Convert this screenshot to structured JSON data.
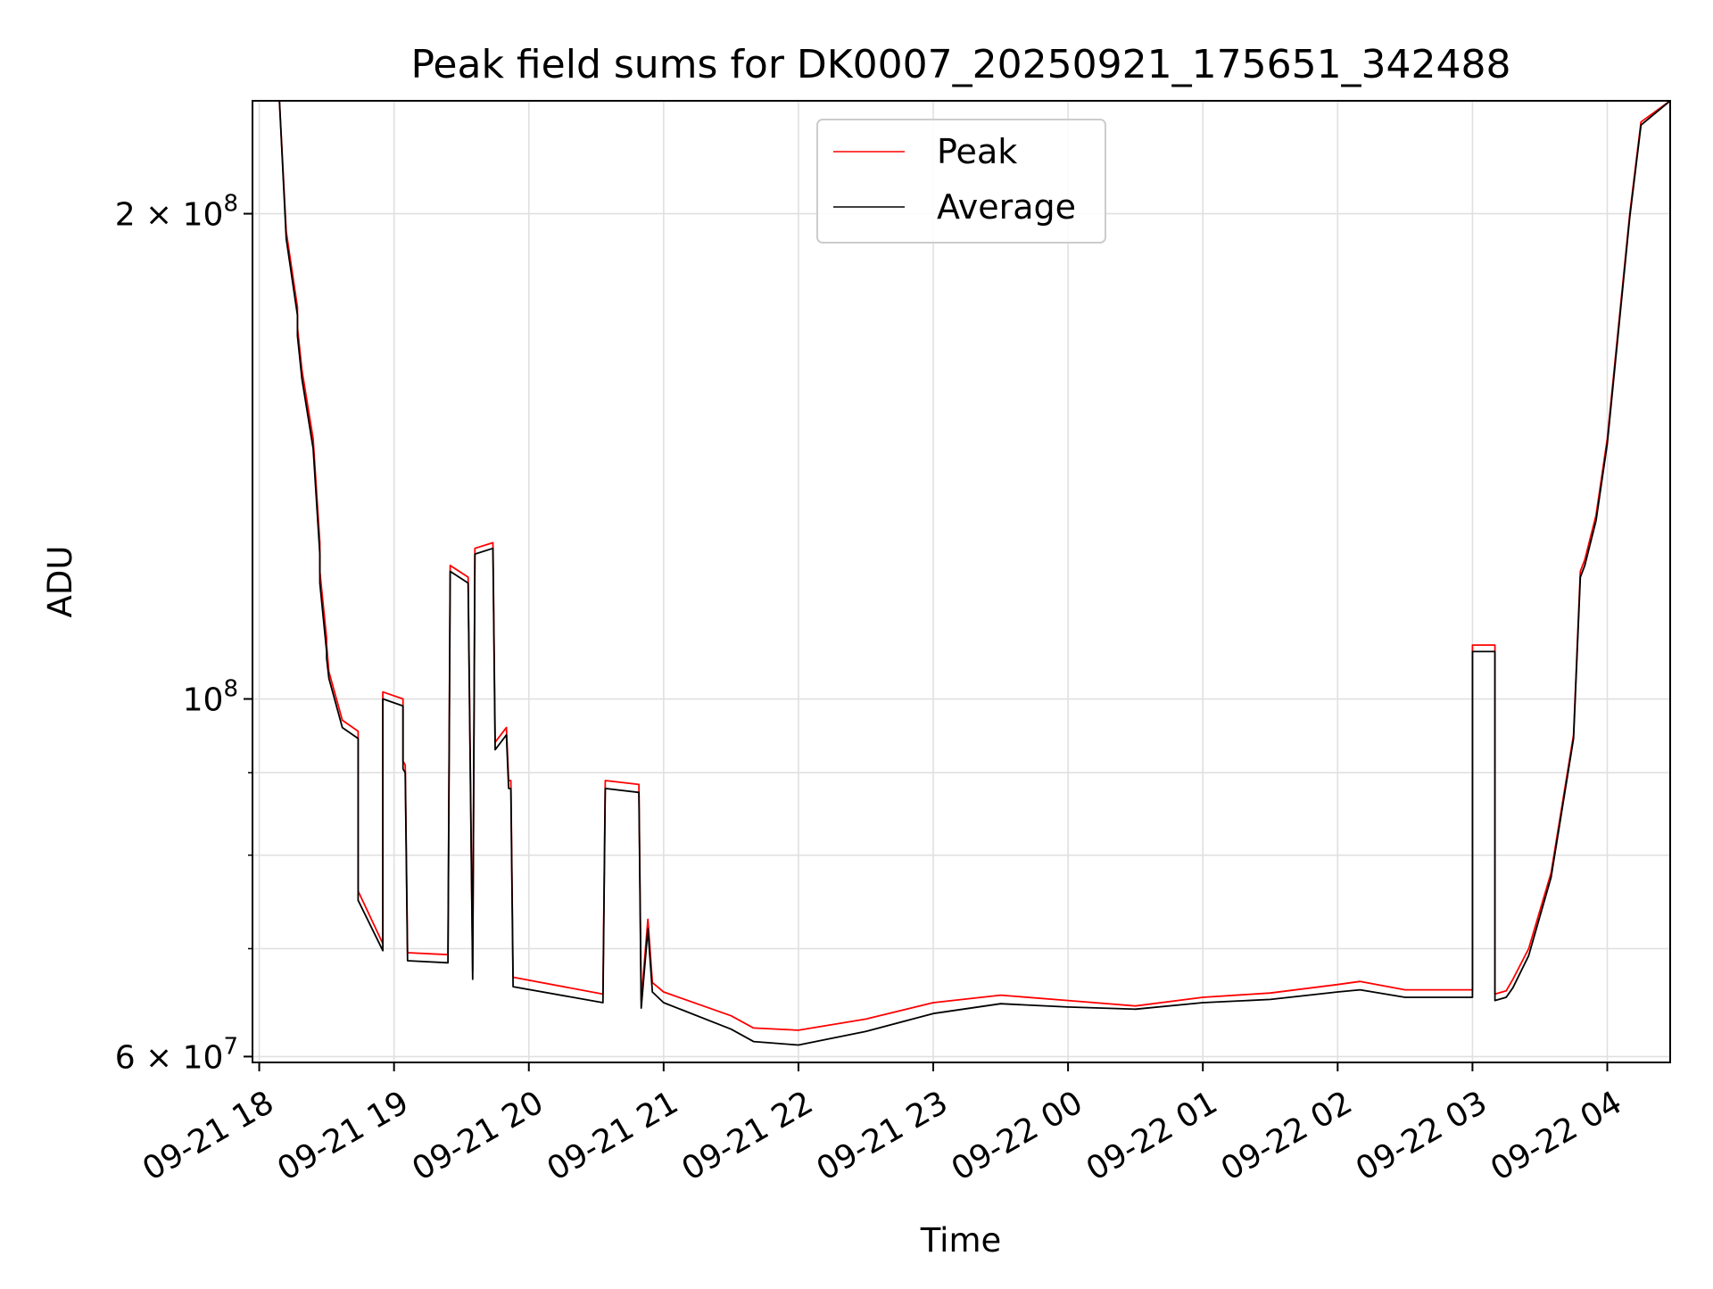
{
  "chart_data": {
    "type": "line",
    "title": "Peak field sums for DK0007_20250921_175651_342488",
    "xlabel": "Time",
    "ylabel": "ADU",
    "yscale": "log",
    "ylim": [
      59500000,
      235000000
    ],
    "xlim": [
      "2025-09-21 17:57",
      "2025-09-22 04:28"
    ],
    "grid": true,
    "legend_position": "top-center",
    "colors": {
      "Peak": "#ff0000",
      "Average": "#000000"
    },
    "x_ticks": [
      {
        "t": "2025-09-21 18:00",
        "label": "09-21 18"
      },
      {
        "t": "2025-09-21 19:00",
        "label": "09-21 19"
      },
      {
        "t": "2025-09-21 20:00",
        "label": "09-21 20"
      },
      {
        "t": "2025-09-21 21:00",
        "label": "09-21 21"
      },
      {
        "t": "2025-09-21 22:00",
        "label": "09-21 22"
      },
      {
        "t": "2025-09-21 23:00",
        "label": "09-21 23"
      },
      {
        "t": "2025-09-22 00:00",
        "label": "09-22 00"
      },
      {
        "t": "2025-09-22 01:00",
        "label": "09-22 01"
      },
      {
        "t": "2025-09-22 02:00",
        "label": "09-22 02"
      },
      {
        "t": "2025-09-22 03:00",
        "label": "09-22 03"
      },
      {
        "t": "2025-09-22 04:00",
        "label": "09-22 04"
      }
    ],
    "y_ticks": [
      {
        "value": 60000000,
        "label": "6 × 10",
        "exp": "7"
      },
      {
        "value": 100000000,
        "label": "10",
        "exp": "8"
      },
      {
        "value": 200000000,
        "label": "2 × 10",
        "exp": "8"
      }
    ],
    "series": [
      {
        "name": "Peak",
        "x": [
          "2025-09-21 17:57",
          "2025-09-21 18:09",
          "2025-09-21 18:12",
          "2025-09-21 18:17",
          "2025-09-21 18:17",
          "2025-09-21 18:19",
          "2025-09-21 18:24",
          "2025-09-21 18:27",
          "2025-09-21 18:27",
          "2025-09-21 18:30",
          "2025-09-21 18:30",
          "2025-09-21 18:31",
          "2025-09-21 18:37",
          "2025-09-21 18:44",
          "2025-09-21 18:44",
          "2025-09-21 18:55",
          "2025-09-21 18:55",
          "2025-09-21 19:04",
          "2025-09-21 19:04",
          "2025-09-21 19:05",
          "2025-09-21 19:06",
          "2025-09-21 19:24",
          "2025-09-21 19:25",
          "2025-09-21 19:33",
          "2025-09-21 19:34",
          "2025-09-21 19:35",
          "2025-09-21 19:36",
          "2025-09-21 19:44",
          "2025-09-21 19:45",
          "2025-09-21 19:50",
          "2025-09-21 19:51",
          "2025-09-21 19:52",
          "2025-09-21 19:53",
          "2025-09-21 20:33",
          "2025-09-21 20:34",
          "2025-09-21 20:49",
          "2025-09-21 20:50",
          "2025-09-21 20:53",
          "2025-09-21 20:55",
          "2025-09-21 21:00",
          "2025-09-21 21:30",
          "2025-09-21 21:40",
          "2025-09-21 22:00",
          "2025-09-21 22:30",
          "2025-09-21 23:00",
          "2025-09-21 23:30",
          "2025-09-22 00:00",
          "2025-09-22 00:30",
          "2025-09-22 01:00",
          "2025-09-22 01:30",
          "2025-09-22 02:00",
          "2025-09-22 02:10",
          "2025-09-22 02:30",
          "2025-09-22 03:00",
          "2025-09-22 03:00",
          "2025-09-22 03:10",
          "2025-09-22 03:10",
          "2025-09-22 03:15",
          "2025-09-22 03:18",
          "2025-09-22 03:25",
          "2025-09-22 03:35",
          "2025-09-22 03:45",
          "2025-09-22 03:48",
          "2025-09-22 03:50",
          "2025-09-22 03:55",
          "2025-09-22 04:00",
          "2025-09-22 04:10",
          "2025-09-22 04:15",
          "2025-09-22 04:28"
        ],
        "y": [
          235000000,
          235000000,
          195000000,
          175000000,
          170000000,
          160000000,
          145000000,
          125000000,
          120000000,
          109000000,
          108000000,
          104000000,
          97000000,
          95500000,
          76000000,
          70500000,
          101000000,
          100000000,
          91500000,
          91000000,
          69600000,
          69400000,
          121000000,
          119000000,
          89500000,
          67800000,
          124000000,
          125000000,
          94000000,
          96000000,
          89000000,
          89000000,
          67200000,
          65600000,
          89000000,
          88500000,
          65000000,
          73000000,
          66700000,
          65800000,
          63600000,
          62500000,
          62300000,
          63300000,
          64800000,
          65500000,
          65000000,
          64500000,
          65300000,
          65700000,
          66500000,
          66800000,
          66000000,
          66000000,
          108000000,
          108000000,
          65600000,
          65900000,
          67000000,
          70000000,
          78000000,
          95000000,
          120000000,
          122000000,
          130000000,
          145000000,
          200000000,
          228000000,
          235000000
        ]
      },
      {
        "name": "Average",
        "x": [
          "2025-09-21 17:57",
          "2025-09-21 18:09",
          "2025-09-21 18:12",
          "2025-09-21 18:17",
          "2025-09-21 18:17",
          "2025-09-21 18:19",
          "2025-09-21 18:24",
          "2025-09-21 18:27",
          "2025-09-21 18:27",
          "2025-09-21 18:30",
          "2025-09-21 18:30",
          "2025-09-21 18:31",
          "2025-09-21 18:37",
          "2025-09-21 18:44",
          "2025-09-21 18:44",
          "2025-09-21 18:55",
          "2025-09-21 18:55",
          "2025-09-21 19:04",
          "2025-09-21 19:04",
          "2025-09-21 19:05",
          "2025-09-21 19:06",
          "2025-09-21 19:24",
          "2025-09-21 19:25",
          "2025-09-21 19:33",
          "2025-09-21 19:34",
          "2025-09-21 19:35",
          "2025-09-21 19:36",
          "2025-09-21 19:44",
          "2025-09-21 19:45",
          "2025-09-21 19:50",
          "2025-09-21 19:51",
          "2025-09-21 19:52",
          "2025-09-21 19:53",
          "2025-09-21 20:33",
          "2025-09-21 20:34",
          "2025-09-21 20:49",
          "2025-09-21 20:50",
          "2025-09-21 20:53",
          "2025-09-21 20:55",
          "2025-09-21 21:00",
          "2025-09-21 21:30",
          "2025-09-21 21:40",
          "2025-09-21 22:00",
          "2025-09-21 22:30",
          "2025-09-21 23:00",
          "2025-09-21 23:30",
          "2025-09-22 00:00",
          "2025-09-22 00:30",
          "2025-09-22 01:00",
          "2025-09-22 01:30",
          "2025-09-22 02:00",
          "2025-09-22 02:10",
          "2025-09-22 02:30",
          "2025-09-22 03:00",
          "2025-09-22 03:00",
          "2025-09-22 03:10",
          "2025-09-22 03:10",
          "2025-09-22 03:15",
          "2025-09-22 03:18",
          "2025-09-22 03:25",
          "2025-09-22 03:35",
          "2025-09-22 03:45",
          "2025-09-22 03:48",
          "2025-09-22 03:50",
          "2025-09-22 03:55",
          "2025-09-22 04:00",
          "2025-09-22 04:10",
          "2025-09-22 04:15",
          "2025-09-22 04:28"
        ],
        "y": [
          235000000,
          235000000,
          193000000,
          173000000,
          168000000,
          158000000,
          143000000,
          123000000,
          118000000,
          107000000,
          106000000,
          103000000,
          96000000,
          94500000,
          75000000,
          69800000,
          100000000,
          99000000,
          90500000,
          90000000,
          68800000,
          68600000,
          120000000,
          118000000,
          88500000,
          67000000,
          123000000,
          124000000,
          93000000,
          95000000,
          88000000,
          88000000,
          66300000,
          64800000,
          88000000,
          87500000,
          64300000,
          72000000,
          65800000,
          64800000,
          62400000,
          61300000,
          61000000,
          62200000,
          63800000,
          64700000,
          64400000,
          64200000,
          64800000,
          65100000,
          65800000,
          66000000,
          65300000,
          65300000,
          107000000,
          107000000,
          65000000,
          65300000,
          66200000,
          69300000,
          77500000,
          94500000,
          119000000,
          121000000,
          129000000,
          144000000,
          199000000,
          227000000,
          235000000
        ]
      }
    ]
  }
}
